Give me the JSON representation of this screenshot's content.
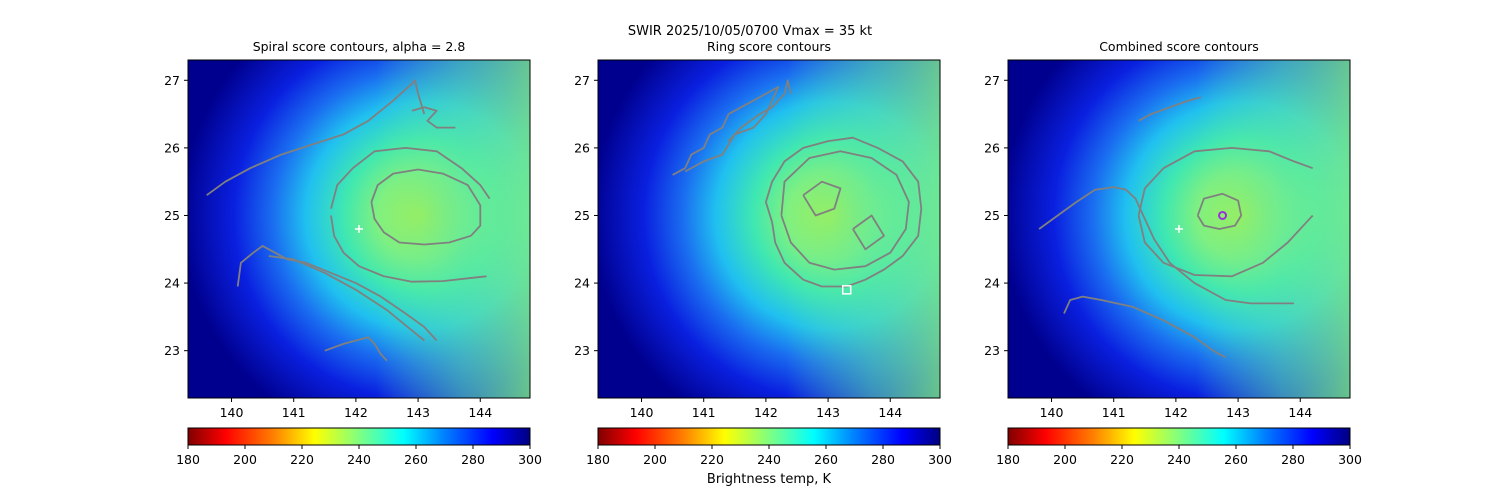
{
  "figure": {
    "suptitle_line1": "SWIR  2025/10/05/0700    Vmax = 35 kt",
    "colorbar_label": "Brightness temp, K"
  },
  "chart_data": [
    {
      "type": "heatmap",
      "title": "Spiral score contours, alpha =  2.8",
      "xlim": [
        139.3,
        144.8
      ],
      "ylim": [
        22.3,
        27.3
      ],
      "xticks": [
        140,
        141,
        142,
        143,
        144
      ],
      "yticks": [
        23,
        24,
        25,
        26,
        27
      ],
      "colorbar": {
        "ticks": [
          180,
          200,
          220,
          240,
          260,
          280,
          300
        ],
        "range": [
          180,
          300
        ],
        "colormap": "jet_r"
      },
      "marker": {
        "type": "plus",
        "x": 142.05,
        "y": 24.8,
        "color": "#ffffff"
      },
      "contour_color": "#808080",
      "contours": [
        [
          [
            139.6,
            25.3
          ],
          [
            139.9,
            25.5
          ],
          [
            140.3,
            25.7
          ],
          [
            140.8,
            25.9
          ],
          [
            141.3,
            26.05
          ],
          [
            141.8,
            26.2
          ],
          [
            142.2,
            26.4
          ],
          [
            142.6,
            26.7
          ],
          [
            142.9,
            26.95
          ],
          [
            142.95,
            27.0
          ],
          [
            143.0,
            26.8
          ],
          [
            143.1,
            26.5
          ]
        ],
        [
          [
            142.9,
            26.55
          ],
          [
            143.1,
            26.6
          ],
          [
            143.3,
            26.55
          ],
          [
            143.15,
            26.4
          ],
          [
            143.3,
            26.3
          ],
          [
            143.6,
            26.3
          ]
        ],
        [
          [
            141.6,
            25.1
          ],
          [
            141.7,
            25.45
          ],
          [
            141.95,
            25.7
          ],
          [
            142.3,
            25.95
          ],
          [
            142.8,
            26.0
          ],
          [
            143.3,
            25.95
          ],
          [
            143.7,
            25.7
          ],
          [
            144.0,
            25.45
          ],
          [
            144.15,
            25.25
          ]
        ],
        [
          [
            141.6,
            25.0
          ],
          [
            141.65,
            24.7
          ],
          [
            141.8,
            24.45
          ],
          [
            142.05,
            24.25
          ],
          [
            142.45,
            24.1
          ],
          [
            142.9,
            24.02
          ],
          [
            143.4,
            24.03
          ],
          [
            143.8,
            24.07
          ],
          [
            144.1,
            24.1
          ]
        ],
        [
          [
            142.25,
            25.2
          ],
          [
            142.35,
            25.45
          ],
          [
            142.6,
            25.62
          ],
          [
            143.0,
            25.68
          ],
          [
            143.4,
            25.62
          ],
          [
            143.8,
            25.45
          ],
          [
            144.0,
            25.15
          ],
          [
            144.0,
            24.85
          ],
          [
            143.85,
            24.7
          ],
          [
            143.5,
            24.6
          ],
          [
            143.1,
            24.57
          ],
          [
            142.7,
            24.6
          ],
          [
            142.45,
            24.75
          ],
          [
            142.3,
            24.95
          ],
          [
            142.25,
            25.2
          ]
        ],
        [
          [
            140.1,
            23.95
          ],
          [
            140.15,
            24.3
          ],
          [
            140.35,
            24.45
          ],
          [
            140.5,
            24.55
          ],
          [
            140.6,
            24.5
          ],
          [
            140.7,
            24.45
          ],
          [
            140.9,
            24.35
          ],
          [
            141.2,
            24.3
          ],
          [
            141.6,
            24.15
          ],
          [
            142.0,
            24.0
          ],
          [
            142.4,
            23.8
          ],
          [
            142.8,
            23.55
          ],
          [
            143.1,
            23.35
          ],
          [
            143.3,
            23.15
          ]
        ],
        [
          [
            140.6,
            24.4
          ],
          [
            141.0,
            24.35
          ],
          [
            141.5,
            24.15
          ],
          [
            142.0,
            23.9
          ],
          [
            142.5,
            23.6
          ],
          [
            142.9,
            23.3
          ],
          [
            143.1,
            23.15
          ]
        ],
        [
          [
            141.5,
            23.0
          ],
          [
            141.8,
            23.1
          ],
          [
            142.0,
            23.15
          ],
          [
            142.2,
            23.2
          ],
          [
            142.3,
            23.1
          ],
          [
            142.4,
            22.95
          ],
          [
            142.5,
            22.85
          ]
        ]
      ]
    },
    {
      "type": "heatmap",
      "title": "Ring score contours",
      "xlim": [
        139.3,
        144.8
      ],
      "ylim": [
        22.3,
        27.3
      ],
      "xticks": [
        140,
        141,
        142,
        143,
        144
      ],
      "yticks": [
        23,
        24,
        25,
        26,
        27
      ],
      "colorbar": {
        "ticks": [
          180,
          200,
          220,
          240,
          260,
          280,
          300
        ],
        "range": [
          180,
          300
        ],
        "colormap": "jet_r"
      },
      "marker": {
        "type": "square",
        "x": 143.3,
        "y": 23.9,
        "color": "#ffffff"
      },
      "contour_color": "#808080",
      "contours": [
        [
          [
            140.5,
            25.6
          ],
          [
            140.7,
            25.7
          ],
          [
            140.8,
            25.9
          ],
          [
            141.0,
            26.0
          ],
          [
            141.1,
            26.2
          ],
          [
            141.3,
            26.3
          ],
          [
            141.4,
            26.5
          ],
          [
            141.6,
            26.6
          ],
          [
            141.8,
            26.7
          ],
          [
            142.0,
            26.8
          ],
          [
            142.2,
            26.9
          ],
          [
            142.0,
            26.5
          ],
          [
            141.8,
            26.3
          ],
          [
            141.5,
            26.2
          ],
          [
            141.3,
            25.9
          ],
          [
            141.0,
            25.8
          ],
          [
            140.7,
            25.65
          ]
        ],
        [
          [
            141.4,
            26.1
          ],
          [
            141.6,
            26.3
          ],
          [
            141.9,
            26.5
          ],
          [
            142.1,
            26.6
          ],
          [
            142.3,
            26.8
          ],
          [
            142.35,
            27.0
          ],
          [
            142.4,
            26.8
          ]
        ],
        [
          [
            142.1,
            24.9
          ],
          [
            142.0,
            25.2
          ],
          [
            142.1,
            25.5
          ],
          [
            142.3,
            25.8
          ],
          [
            142.6,
            26.0
          ],
          [
            143.0,
            26.1
          ],
          [
            143.4,
            26.15
          ],
          [
            143.8,
            26.0
          ],
          [
            144.2,
            25.8
          ],
          [
            144.45,
            25.5
          ],
          [
            144.5,
            25.1
          ],
          [
            144.45,
            24.7
          ],
          [
            144.2,
            24.4
          ],
          [
            143.9,
            24.2
          ],
          [
            143.6,
            24.05
          ],
          [
            143.3,
            23.95
          ],
          [
            142.9,
            23.95
          ],
          [
            142.6,
            24.05
          ],
          [
            142.3,
            24.3
          ],
          [
            142.15,
            24.6
          ],
          [
            142.1,
            24.9
          ]
        ],
        [
          [
            142.25,
            25.0
          ],
          [
            142.3,
            25.5
          ],
          [
            142.7,
            25.85
          ],
          [
            143.2,
            25.95
          ],
          [
            143.7,
            25.85
          ],
          [
            144.1,
            25.6
          ],
          [
            144.3,
            25.2
          ],
          [
            144.25,
            24.8
          ],
          [
            144.0,
            24.45
          ],
          [
            143.6,
            24.25
          ],
          [
            143.1,
            24.2
          ],
          [
            142.7,
            24.3
          ],
          [
            142.4,
            24.6
          ],
          [
            142.25,
            25.0
          ]
        ],
        [
          [
            142.6,
            25.3
          ],
          [
            142.9,
            25.5
          ],
          [
            143.2,
            25.4
          ],
          [
            143.1,
            25.1
          ],
          [
            142.8,
            25.0
          ],
          [
            142.6,
            25.3
          ]
        ],
        [
          [
            143.4,
            24.8
          ],
          [
            143.7,
            25.0
          ],
          [
            143.9,
            24.7
          ],
          [
            143.6,
            24.5
          ],
          [
            143.4,
            24.8
          ]
        ]
      ]
    },
    {
      "type": "heatmap",
      "title": "Combined score contours",
      "xlim": [
        139.3,
        144.8
      ],
      "ylim": [
        22.3,
        27.3
      ],
      "xticks": [
        140,
        141,
        142,
        143,
        144
      ],
      "yticks": [
        23,
        24,
        25,
        26,
        27
      ],
      "colorbar": {
        "ticks": [
          180,
          200,
          220,
          240,
          260,
          280,
          300
        ],
        "range": [
          180,
          300
        ],
        "colormap": "jet_r"
      },
      "marker": {
        "type": "plus",
        "x": 142.05,
        "y": 24.8,
        "color": "#ffffff"
      },
      "marker2": {
        "type": "circle",
        "x": 142.75,
        "y": 25.0,
        "color": "#9b30d9"
      },
      "contour_color": "#808080",
      "contours": [
        [
          [
            141.4,
            26.4
          ],
          [
            141.6,
            26.5
          ],
          [
            141.9,
            26.6
          ],
          [
            142.2,
            26.7
          ],
          [
            142.4,
            26.75
          ]
        ],
        [
          [
            139.8,
            24.8
          ],
          [
            140.1,
            25.0
          ],
          [
            140.4,
            25.2
          ],
          [
            140.7,
            25.38
          ],
          [
            141.0,
            25.42
          ],
          [
            141.2,
            25.38
          ],
          [
            141.35,
            25.25
          ],
          [
            141.5,
            24.95
          ],
          [
            141.65,
            24.65
          ],
          [
            141.9,
            24.3
          ],
          [
            142.3,
            24.0
          ],
          [
            142.8,
            23.75
          ],
          [
            143.2,
            23.7
          ],
          [
            143.6,
            23.7
          ],
          [
            143.9,
            23.7
          ]
        ],
        [
          [
            140.2,
            23.55
          ],
          [
            140.3,
            23.75
          ],
          [
            140.5,
            23.8
          ],
          [
            140.8,
            23.75
          ],
          [
            141.3,
            23.65
          ],
          [
            141.8,
            23.45
          ],
          [
            142.3,
            23.2
          ],
          [
            142.6,
            23.0
          ],
          [
            142.8,
            22.9
          ]
        ],
        [
          [
            141.4,
            25.0
          ],
          [
            141.5,
            25.4
          ],
          [
            141.8,
            25.7
          ],
          [
            142.3,
            25.95
          ],
          [
            142.9,
            26.0
          ],
          [
            143.5,
            25.95
          ],
          [
            143.9,
            25.8
          ],
          [
            144.2,
            25.7
          ]
        ],
        [
          [
            141.4,
            25.0
          ],
          [
            141.5,
            24.6
          ],
          [
            141.8,
            24.3
          ],
          [
            142.3,
            24.12
          ],
          [
            142.9,
            24.1
          ],
          [
            143.4,
            24.3
          ],
          [
            143.8,
            24.6
          ],
          [
            144.1,
            24.9
          ],
          [
            144.2,
            25.0
          ]
        ],
        [
          [
            142.35,
            25.0
          ],
          [
            142.45,
            25.25
          ],
          [
            142.75,
            25.32
          ],
          [
            143.0,
            25.22
          ],
          [
            143.05,
            25.0
          ],
          [
            142.95,
            24.85
          ],
          [
            142.7,
            24.8
          ],
          [
            142.45,
            24.85
          ],
          [
            142.35,
            25.0
          ]
        ]
      ]
    }
  ]
}
